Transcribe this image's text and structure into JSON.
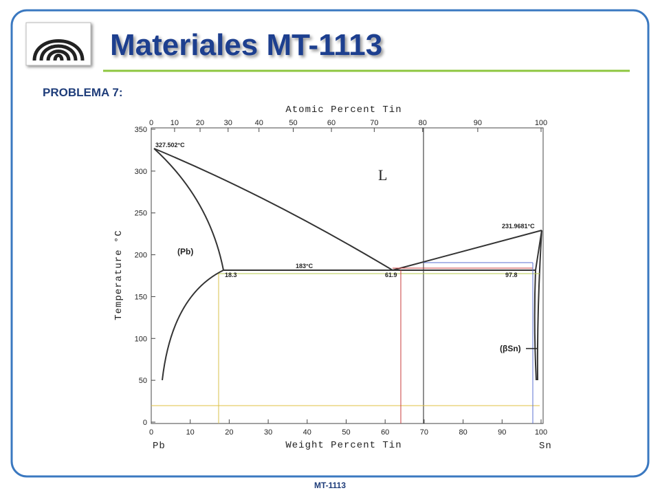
{
  "header": {
    "title": "Materiales MT-1113"
  },
  "problem": "PROBLEMA 7:",
  "diagram": {
    "top_axis_title": "Atomic Percent Tin",
    "top_ticks": [
      0,
      10,
      20,
      30,
      40,
      50,
      60,
      70,
      80,
      90,
      100
    ],
    "bottom_axis_title": "Weight Percent Tin",
    "bottom_ticks": [
      0,
      10,
      20,
      30,
      40,
      50,
      60,
      70,
      80,
      90,
      100
    ],
    "y_axis_title": "Temperature °C",
    "y_ticks": [
      0,
      50,
      100,
      150,
      200,
      250,
      300,
      350
    ],
    "left_element": "Pb",
    "right_element": "Sn",
    "pb_melting": "327.502°C",
    "sn_melting": "231.9681°C",
    "eutectic_temp": "183°C",
    "pb_solubility": "18.3",
    "eutectic_comp": "61.9",
    "sn_solubility": "97.8",
    "liquid": "L",
    "pb_phase": "(Pb)",
    "sn_phase": "(βSn)"
  },
  "footer": "MT-1113"
}
